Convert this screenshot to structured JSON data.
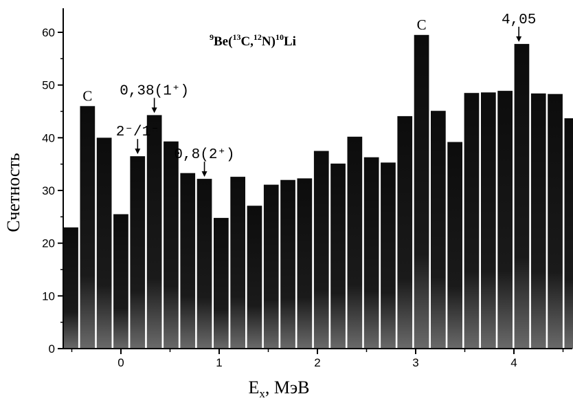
{
  "chart_data": {
    "type": "bar",
    "title": "",
    "reaction_label": {
      "prefix_sup": "9",
      "main": "Be(",
      "sup1": "13",
      "mid": "C,",
      "sup2": "12",
      "mid2": "N)",
      "sup3": "10",
      "tail": "Li"
    },
    "xlabel": "E",
    "xlabel_sub": "x",
    "xlabel_unit": ", МэВ",
    "ylabel": "Счетность",
    "xlim": [
      -0.58,
      4.6
    ],
    "ylim": [
      0,
      65
    ],
    "x_ticks": [
      0,
      1,
      2,
      3,
      4
    ],
    "x_tick_labels": [
      "0",
      "1",
      "2",
      "3",
      "4"
    ],
    "y_ticks": [
      0,
      10,
      20,
      30,
      40,
      50,
      60
    ],
    "y_tick_labels": [
      "0",
      "10",
      "20",
      "30",
      "40",
      "50",
      "60"
    ],
    "bar_width": 0.152,
    "x": [
      -0.51,
      -0.34,
      -0.17,
      0.0,
      0.17,
      0.34,
      0.51,
      0.68,
      0.85,
      1.02,
      1.19,
      1.36,
      1.53,
      1.7,
      1.87,
      2.04,
      2.21,
      2.38,
      2.55,
      2.72,
      2.89,
      3.06,
      3.23,
      3.4,
      3.57,
      3.74,
      3.91,
      4.08,
      4.25,
      4.42,
      4.59
    ],
    "values": [
      23,
      46,
      40,
      25.5,
      36.5,
      44.3,
      39.3,
      33.3,
      32.2,
      24.8,
      32.6,
      27.1,
      31.1,
      32.0,
      32.3,
      37.5,
      35.1,
      40.2,
      36.3,
      35.3,
      44.1,
      59.5,
      45.1,
      39.2,
      48.5,
      48.6,
      48.9,
      57.8,
      48.4,
      48.3,
      43.7
    ],
    "annotations": [
      {
        "text": "C",
        "x": -0.34,
        "y": 46,
        "arrow": false
      },
      {
        "text": "2⁻/1⁻",
        "x": 0.17,
        "y": 36.5,
        "arrow": true
      },
      {
        "text": "0,38(1⁺)",
        "x": 0.34,
        "y": 44.3,
        "arrow": true
      },
      {
        "text": "0,8(2⁺)",
        "x": 0.85,
        "y": 32.2,
        "arrow": true
      },
      {
        "text": "C",
        "x": 3.06,
        "y": 59.5,
        "arrow": false
      },
      {
        "text": "4,05",
        "x": 4.05,
        "y": 57.8,
        "arrow": true
      }
    ],
    "grid": false,
    "legend": "none",
    "bar_color": "#111111"
  }
}
